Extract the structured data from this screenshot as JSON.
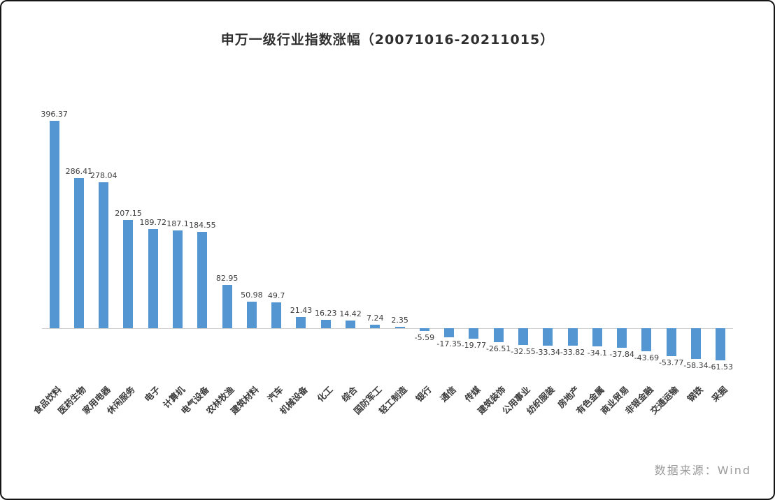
{
  "chart": {
    "title": "申万一级行业指数涨幅（20071016-20211015）",
    "source": "数据来源：Wind"
  },
  "chart_data": {
    "type": "bar",
    "title": "申万一级行业指数涨幅（20071016-20211015）",
    "categories": [
      "食品饮料",
      "医药生物",
      "家用电器",
      "休闲服务",
      "电子",
      "计算机",
      "电气设备",
      "农林牧渔",
      "建筑材料",
      "汽车",
      "机械设备",
      "化工",
      "综合",
      "国防军工",
      "轻工制造",
      "银行",
      "通信",
      "传媒",
      "建筑装饰",
      "公用事业",
      "纺织服装",
      "房地产",
      "有色金属",
      "商业贸易",
      "非银金融",
      "交通运输",
      "钢铁",
      "采掘"
    ],
    "values": [
      396.37,
      286.41,
      278.04,
      207.15,
      189.72,
      187.1,
      184.55,
      82.95,
      50.98,
      49.7,
      21.43,
      16.23,
      14.42,
      7.24,
      2.35,
      -5.59,
      -17.35,
      -19.77,
      -26.51,
      -32.55,
      -33.34,
      -33.82,
      -34.1,
      -37.84,
      -43.69,
      -53.77,
      -58.34,
      -61.53
    ],
    "xlabel": "",
    "ylabel": "",
    "ylim": [
      -80,
      420
    ],
    "grid": false,
    "legend": "none",
    "data_labels": true,
    "bar_color": "#5396D2",
    "baseline_color": "#d0d0d0",
    "source": "数据来源：Wind"
  }
}
